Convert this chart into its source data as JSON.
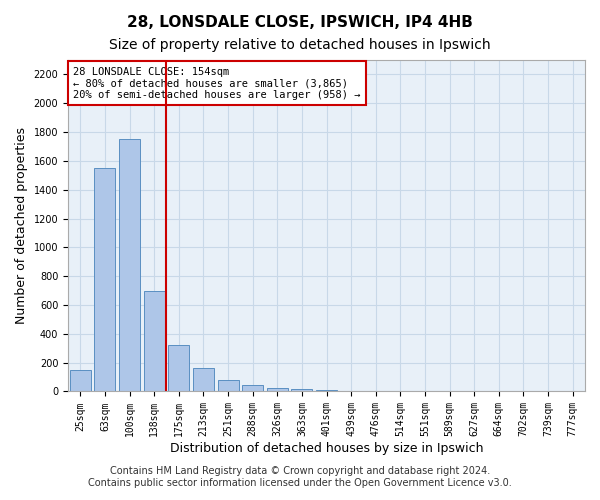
{
  "title1": "28, LONSDALE CLOSE, IPSWICH, IP4 4HB",
  "title2": "Size of property relative to detached houses in Ipswich",
  "xlabel": "Distribution of detached houses by size in Ipswich",
  "ylabel": "Number of detached properties",
  "categories": [
    "25sqm",
    "63sqm",
    "100sqm",
    "138sqm",
    "175sqm",
    "213sqm",
    "251sqm",
    "288sqm",
    "326sqm",
    "363sqm",
    "401sqm",
    "439sqm",
    "476sqm",
    "514sqm",
    "551sqm",
    "589sqm",
    "627sqm",
    "664sqm",
    "702sqm",
    "739sqm",
    "777sqm"
  ],
  "values": [
    150,
    1550,
    1750,
    700,
    320,
    160,
    80,
    45,
    25,
    20,
    10,
    5,
    3,
    2,
    1,
    1,
    1,
    1,
    1,
    1,
    1
  ],
  "bar_color": "#aec6e8",
  "bar_edge_color": "#5a8fc2",
  "vline_x": 3,
  "vline_color": "#cc0000",
  "annotation_text": "28 LONSDALE CLOSE: 154sqm\n← 80% of detached houses are smaller (3,865)\n20% of semi-detached houses are larger (958) →",
  "annotation_box_color": "#ffffff",
  "annotation_box_edge": "#cc0000",
  "ylim": [
    0,
    2300
  ],
  "yticks": [
    0,
    200,
    400,
    600,
    800,
    1000,
    1200,
    1400,
    1600,
    1800,
    2000,
    2200
  ],
  "footer1": "Contains HM Land Registry data © Crown copyright and database right 2024.",
  "footer2": "Contains public sector information licensed under the Open Government Licence v3.0.",
  "bg_color": "#ffffff",
  "grid_color": "#c8d8e8",
  "title1_fontsize": 11,
  "title2_fontsize": 10,
  "tick_fontsize": 7,
  "label_fontsize": 9,
  "footer_fontsize": 7
}
